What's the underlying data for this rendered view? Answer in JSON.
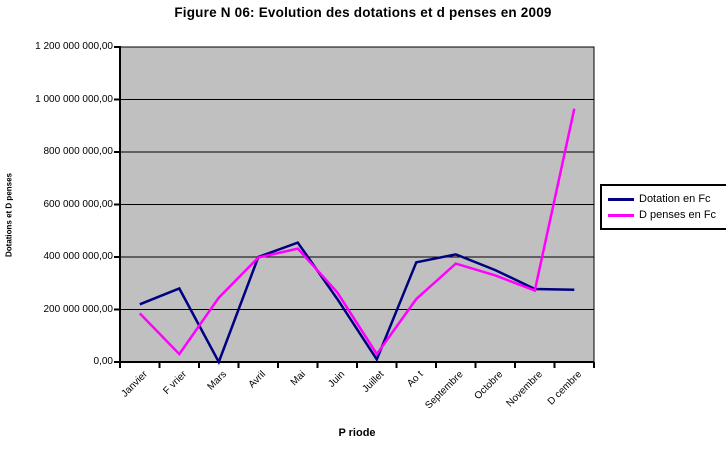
{
  "title": "Figure N 06: Evolution des dotations et d penses en 2009",
  "chart_data": {
    "type": "line",
    "title": "Figure N 06: Evolution des dotations et d penses en 2009",
    "xlabel": "P riode",
    "ylabel": "Dotations et D penses",
    "categories": [
      "Janvier",
      "F vrier",
      "Mars",
      "Avril",
      "Mai",
      "Juin",
      "Juillet",
      "Ao t",
      "Septembre",
      "Octobre",
      "Novembre",
      "D cembre"
    ],
    "series": [
      {
        "name": "Dotation en Fc",
        "color": "#000080",
        "values": [
          220000000,
          280000000,
          0,
          400000000,
          455000000,
          240000000,
          10000000,
          380000000,
          410000000,
          350000000,
          278000000,
          275000000
        ]
      },
      {
        "name": "D penses en Fc",
        "color": "#FF00FF",
        "values": [
          185000000,
          30000000,
          245000000,
          398000000,
          432000000,
          265000000,
          30000000,
          240000000,
          375000000,
          330000000,
          272000000,
          965000000
        ]
      }
    ],
    "ylim": [
      0,
      1200000000
    ],
    "y_tick_step": 200000000,
    "y_tick_labels": [
      "0,00",
      "200 000 000,00",
      "400 000 000,00",
      "600 000 000,00",
      "800 000 000,00",
      "1 000 000 000,00",
      "1 200 000 000,00"
    ],
    "grid": true,
    "gridline_color": "#000000",
    "plot_background": "#C0C0C0",
    "legend_position": "right"
  },
  "legend": {
    "items": [
      {
        "label": "Dotation en Fc",
        "color": "#000080"
      },
      {
        "label": "D penses en Fc",
        "color": "#FF00FF"
      }
    ]
  }
}
